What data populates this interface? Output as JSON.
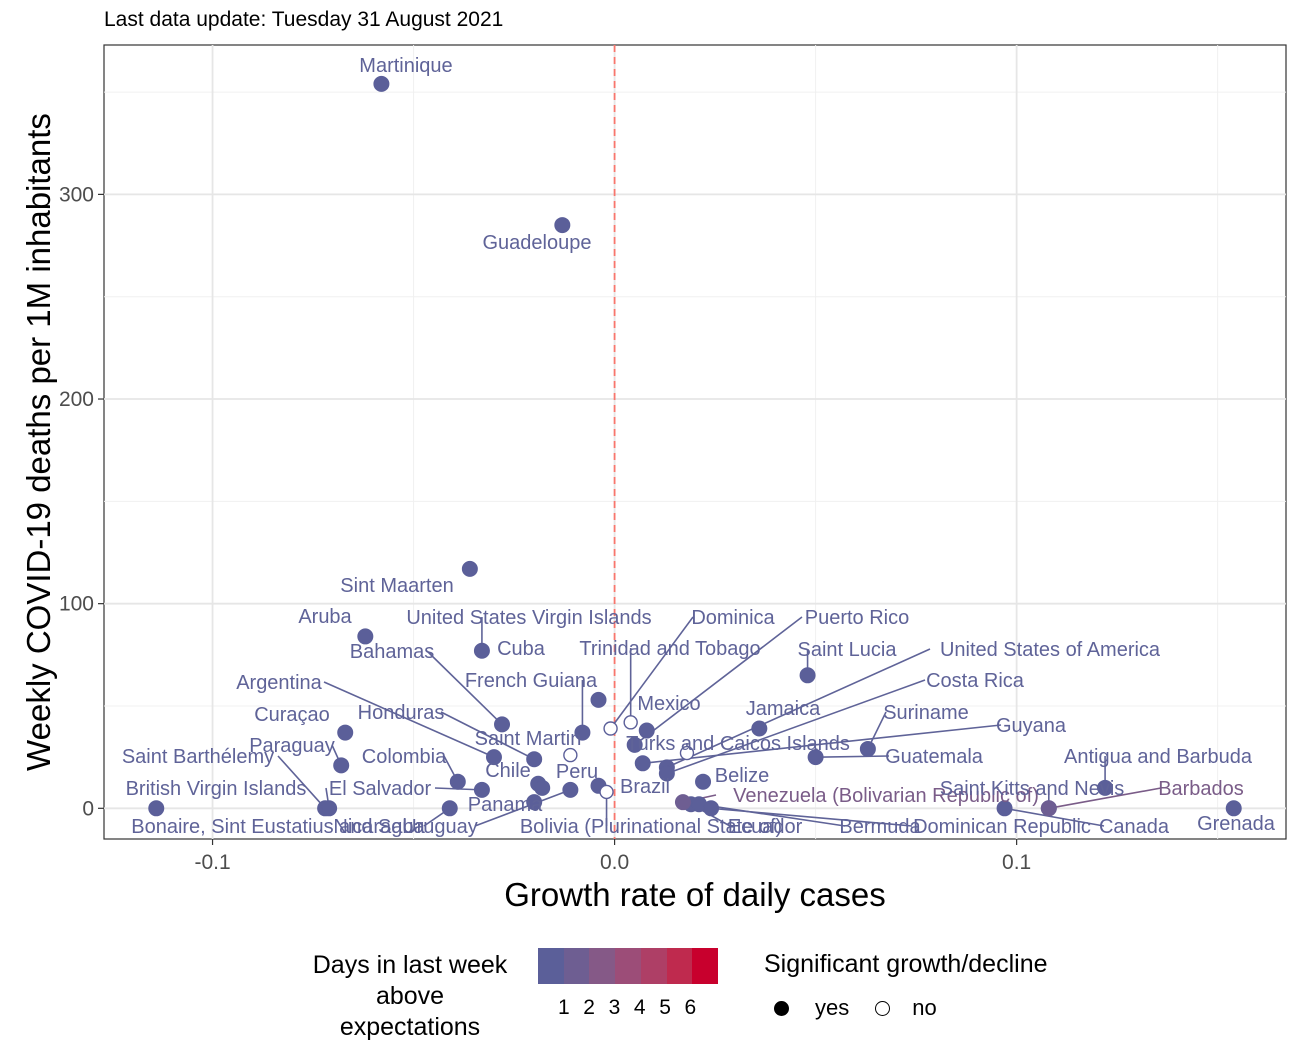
{
  "caption": "Last data update: Tuesday 31 August 2021",
  "chart_data": {
    "type": "scatter",
    "xlabel": "Growth rate of daily cases",
    "ylabel": "Weekly COVID-19 deaths per 1M inhabitants",
    "xlim": [
      -0.127,
      0.167
    ],
    "ylim": [
      -15,
      373
    ],
    "xticks": [
      -0.1,
      0.0,
      0.1
    ],
    "xtick_labels": [
      "-0.1",
      "0.0",
      "0.1"
    ],
    "yticks": [
      0,
      100,
      200,
      300
    ],
    "ytick_labels": [
      "0",
      "100",
      "200",
      "300"
    ],
    "grid": true,
    "reference_line": {
      "x": 0,
      "style": "dashed",
      "color": "#f8766d"
    },
    "colors": {
      "low": "#5b5f99",
      "high": "#c8002d",
      "label": "#5f6398",
      "label_high": "#7a5c88"
    },
    "points": [
      {
        "name": "Martinique",
        "x": -0.058,
        "y": 354,
        "sig": true,
        "days": 1
      },
      {
        "name": "Guadeloupe",
        "x": -0.013,
        "y": 285,
        "sig": true,
        "days": 1
      },
      {
        "name": "Sint Maarten",
        "x": -0.036,
        "y": 117,
        "sig": true,
        "days": 1
      },
      {
        "name": "Aruba",
        "x": -0.062,
        "y": 84,
        "sig": true,
        "days": 1
      },
      {
        "name": "United States Virgin Islands",
        "x": -0.033,
        "y": 77,
        "sig": true,
        "days": 1
      },
      {
        "name": "Bahamas",
        "x": -0.028,
        "y": 41,
        "sig": true,
        "days": 1
      },
      {
        "name": "Cuba",
        "x": -0.004,
        "y": 53,
        "sig": true,
        "days": 1
      },
      {
        "name": "French Guiana",
        "x": -0.008,
        "y": 37,
        "sig": true,
        "days": 1
      },
      {
        "name": "Trinidad and Tobago",
        "x": 0.004,
        "y": 42,
        "sig": false,
        "days": 1
      },
      {
        "name": "Dominica",
        "x": -0.001,
        "y": 39,
        "sig": false,
        "days": 1
      },
      {
        "name": "Puerto Rico",
        "x": 0.005,
        "y": 31,
        "sig": true,
        "days": 1
      },
      {
        "name": "Saint Lucia",
        "x": 0.048,
        "y": 65,
        "sig": true,
        "days": 1
      },
      {
        "name": "United States of America",
        "x": 0.013,
        "y": 20,
        "sig": true,
        "days": 1
      },
      {
        "name": "Costa Rica",
        "x": 0.013,
        "y": 17,
        "sig": true,
        "days": 1
      },
      {
        "name": "Mexico",
        "x": 0.008,
        "y": 38,
        "sig": true,
        "days": 1
      },
      {
        "name": "Jamaica",
        "x": 0.036,
        "y": 39,
        "sig": true,
        "days": 1
      },
      {
        "name": "Suriname",
        "x": 0.063,
        "y": 29,
        "sig": true,
        "days": 1
      },
      {
        "name": "Guyana",
        "x": 0.007,
        "y": 22,
        "sig": true,
        "days": 1
      },
      {
        "name": "Guatemala",
        "x": 0.05,
        "y": 25,
        "sig": true,
        "days": 1
      },
      {
        "name": "Turks and Caicos Islands",
        "x": 0.018,
        "y": 27,
        "sig": false,
        "days": 1
      },
      {
        "name": "Argentina",
        "x": -0.03,
        "y": 25,
        "sig": true,
        "days": 1
      },
      {
        "name": "Honduras",
        "x": -0.02,
        "y": 24,
        "sig": true,
        "days": 1
      },
      {
        "name": "Curaçao",
        "x": -0.067,
        "y": 37,
        "sig": true,
        "days": 1
      },
      {
        "name": "Saint Martin",
        "x": -0.011,
        "y": 26,
        "sig": false,
        "days": 1
      },
      {
        "name": "Paraguay",
        "x": -0.068,
        "y": 21,
        "sig": true,
        "days": 1
      },
      {
        "name": "Colombia",
        "x": -0.039,
        "y": 13,
        "sig": true,
        "days": 1
      },
      {
        "name": "Chile",
        "x": -0.019,
        "y": 12,
        "sig": true,
        "days": 1
      },
      {
        "name": "El Salvador",
        "x": -0.033,
        "y": 9,
        "sig": true,
        "days": 1
      },
      {
        "name": "Peru",
        "x": -0.004,
        "y": 11,
        "sig": true,
        "days": 1
      },
      {
        "name": "Brazil",
        "x": -0.018,
        "y": 10,
        "sig": true,
        "days": 1
      },
      {
        "name": "Saint Barthélemy",
        "x": -0.072,
        "y": 0,
        "sig": true,
        "days": 1
      },
      {
        "name": "British Virgin Islands",
        "x": -0.071,
        "y": 0,
        "sig": true,
        "days": 1
      },
      {
        "name": "Bonaire, Sint Eustatius and Saba",
        "x": -0.114,
        "y": 0,
        "sig": true,
        "days": 1
      },
      {
        "name": "Nicaragua",
        "x": -0.041,
        "y": 0,
        "sig": true,
        "days": 1
      },
      {
        "name": "Panama",
        "x": -0.02,
        "y": 3,
        "sig": true,
        "days": 1
      },
      {
        "name": "Uruguay",
        "x": -0.011,
        "y": 9,
        "sig": true,
        "days": 1
      },
      {
        "name": "Bolivia (Plurinational State of)",
        "x": -0.002,
        "y": 8,
        "sig": false,
        "days": 1
      },
      {
        "name": "Belize",
        "x": 0.022,
        "y": 13,
        "sig": true,
        "days": 1
      },
      {
        "name": "Ecuador",
        "x": 0.019,
        "y": 2,
        "sig": true,
        "days": 1
      },
      {
        "name": "Venezuela (Bolivarian Republic of)",
        "x": 0.017,
        "y": 3,
        "sig": true,
        "days": 2
      },
      {
        "name": "Bermuda",
        "x": 0.021,
        "y": 2,
        "sig": true,
        "days": 1
      },
      {
        "name": "Dominican Republic",
        "x": 0.024,
        "y": 0,
        "sig": true,
        "days": 1
      },
      {
        "name": "Canada",
        "x": 0.097,
        "y": 0,
        "sig": true,
        "days": 1
      },
      {
        "name": "Saint Kitts and Nevis",
        "x": 0.108,
        "y": 0,
        "sig": true,
        "days": 1
      },
      {
        "name": "Barbados",
        "x": 0.108,
        "y": 0,
        "sig": true,
        "days": 2
      },
      {
        "name": "Antigua and Barbuda",
        "x": 0.122,
        "y": 10,
        "sig": true,
        "days": 1
      },
      {
        "name": "Grenada",
        "x": 0.154,
        "y": 0,
        "sig": true,
        "days": 1
      }
    ]
  },
  "legend": {
    "color_title_lines": [
      "Days in last week",
      "above",
      "expectations"
    ],
    "color_ticks": [
      "1",
      "2",
      "3",
      "4",
      "5",
      "6"
    ],
    "color_steps": [
      "#5b5f99",
      "#6e5e92",
      "#855987",
      "#9c4d78",
      "#ae3f66",
      "#bf2a4e",
      "#c8002d"
    ],
    "shape_title": "Significant growth/decline",
    "shape_items": [
      {
        "label": "yes",
        "filled": true
      },
      {
        "label": "no",
        "filled": false
      }
    ]
  }
}
